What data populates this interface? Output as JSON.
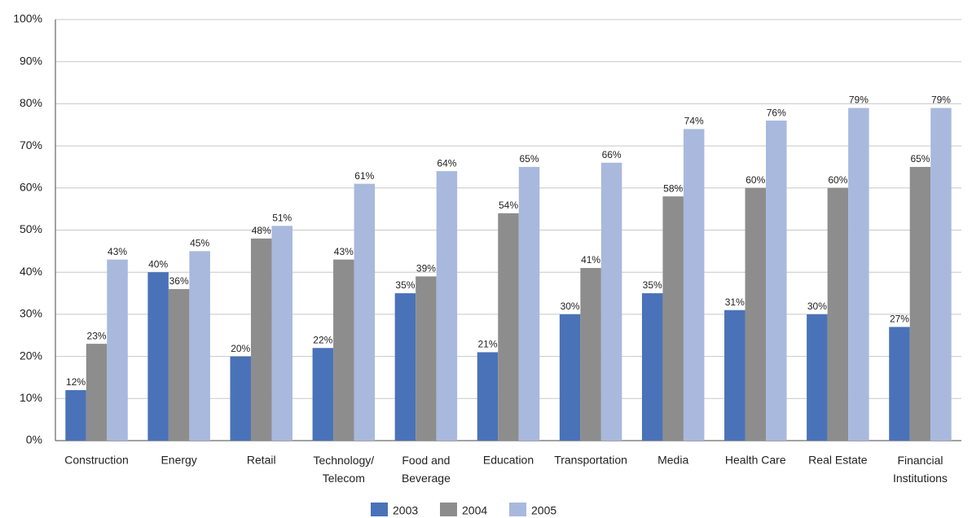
{
  "chart_data": {
    "type": "bar",
    "categories": [
      "Construction",
      "Energy",
      "Retail",
      "Technology/ Telecom",
      "Food and Beverage",
      "Education",
      "Transportation",
      "Media",
      "Health Care",
      "Real Estate",
      "Financial Institutions"
    ],
    "series": [
      {
        "name": "2003",
        "color": "#4a72b8",
        "values": [
          12,
          40,
          20,
          22,
          35,
          21,
          30,
          35,
          31,
          30,
          27
        ],
        "value_labels": [
          "12%",
          "40%",
          "20%",
          "22%",
          "35%",
          "21%",
          "30%",
          "35%",
          "31%",
          "30%",
          "27%"
        ]
      },
      {
        "name": "2004",
        "color": "#8d8d8d",
        "values": [
          23,
          36,
          48,
          43,
          39,
          54,
          41,
          58,
          60,
          60,
          65
        ],
        "value_labels": [
          "23%",
          "36%",
          "48%",
          "43%",
          "39%",
          "54%",
          "41%",
          "58%",
          "60%",
          "60%",
          "65%"
        ]
      },
      {
        "name": "2005",
        "color": "#a8b9dd",
        "values": [
          43,
          45,
          51,
          61,
          64,
          65,
          66,
          74,
          76,
          79,
          79
        ],
        "value_labels": [
          "43%",
          "45%",
          "51%",
          "61%",
          "64%",
          "65%",
          "66%",
          "74%",
          "76%",
          "79%",
          "79%"
        ]
      }
    ],
    "ylim": [
      0,
      100
    ],
    "yticks": [
      {
        "value": 0,
        "label": "0%"
      },
      {
        "value": 10,
        "label": "10%"
      },
      {
        "value": 20,
        "label": "20%"
      },
      {
        "value": 30,
        "label": "30%"
      },
      {
        "value": 40,
        "label": "40%"
      },
      {
        "value": 50,
        "label": "50%"
      },
      {
        "value": 60,
        "label": "60%"
      },
      {
        "value": 70,
        "label": "70%"
      },
      {
        "value": 80,
        "label": "80%"
      },
      {
        "value": 90,
        "label": "90%"
      },
      {
        "value": 100,
        "label": "100%"
      }
    ],
    "grid": true,
    "legend": "bottom"
  }
}
